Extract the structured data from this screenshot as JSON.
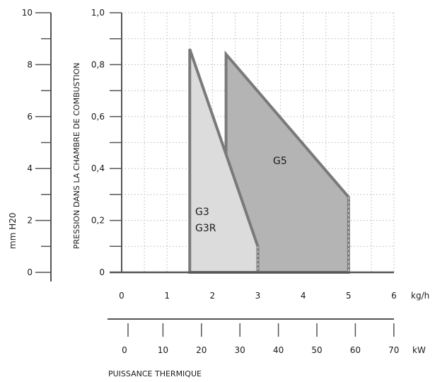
{
  "chart_data": {
    "type": "area",
    "ylabel": "PRESSION DANS LA CHAMBRE DE COMBUSTION",
    "left_axis_label": "mm H20",
    "x_bottom_label": "PUISSANCE THERMIQUE",
    "x_unit": "kg/h",
    "kw_unit": "kW",
    "xlim": [
      0,
      6
    ],
    "ylim": [
      0,
      1.0
    ],
    "x_ticks": [
      "0",
      "1",
      "2",
      "3",
      "4",
      "5",
      "6"
    ],
    "y_ticks": [
      "0",
      "0,2",
      "0,4",
      "0,6",
      "0,8",
      "1,0"
    ],
    "mmh2o_ticks": [
      "0",
      "2",
      "4",
      "6",
      "8",
      "10"
    ],
    "kw_ticks": [
      "0",
      "10",
      "20",
      "30",
      "40",
      "50",
      "60",
      "70"
    ],
    "grid": true,
    "series": [
      {
        "name": "G5",
        "color": "#b4b4b4",
        "points": [
          [
            2.3,
            0.0
          ],
          [
            2.3,
            0.84
          ],
          [
            5.0,
            0.29
          ],
          [
            5.0,
            0.0
          ]
        ]
      },
      {
        "name": "G3",
        "name2": "G3R",
        "color": "#dcdcdc",
        "points": [
          [
            1.5,
            0.0
          ],
          [
            1.5,
            0.86
          ],
          [
            3.0,
            0.1
          ],
          [
            3.0,
            0.0
          ]
        ]
      }
    ]
  }
}
